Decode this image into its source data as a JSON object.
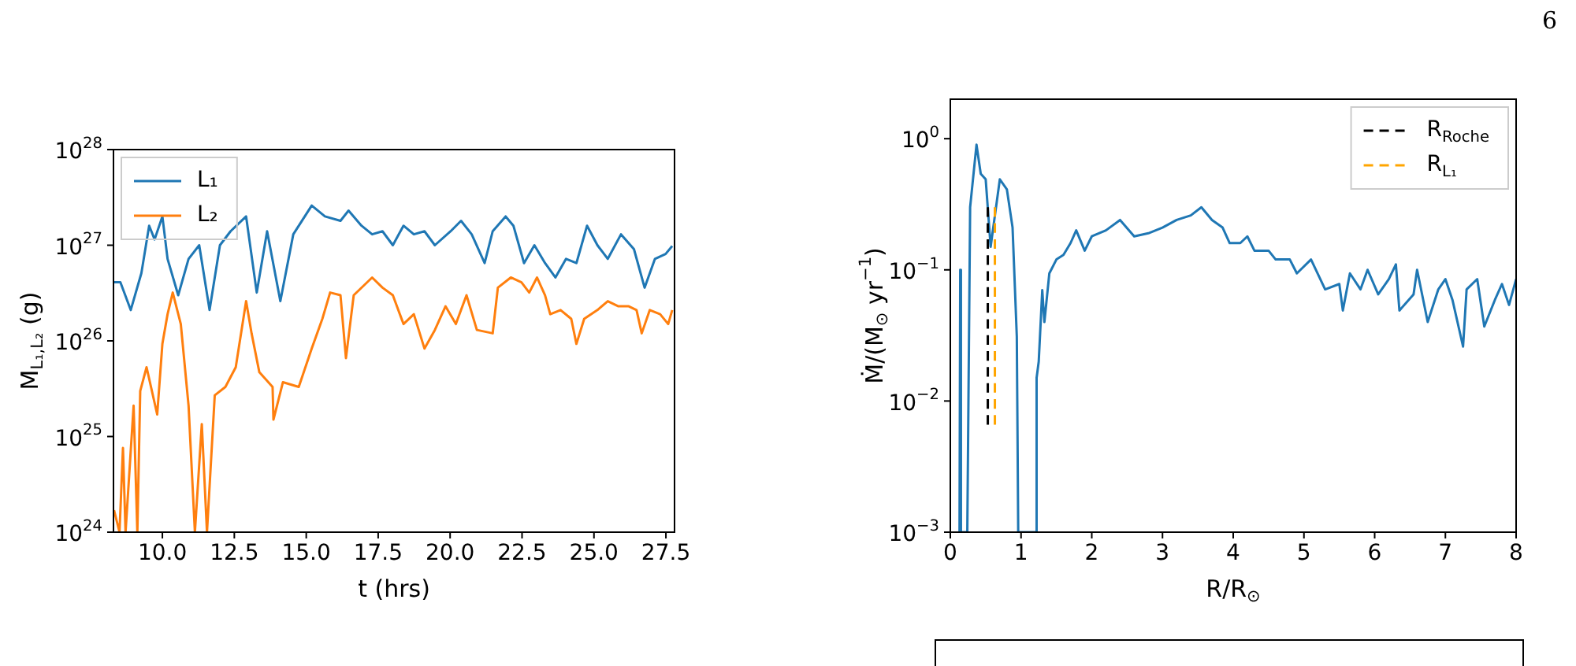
{
  "chart_data": [
    {
      "type": "line",
      "xlabel": "t (hrs)",
      "ylabel": "M$_{L₁,L₂}$ (g)",
      "log": "y",
      "legend": "top left",
      "xlim": [
        8.3,
        27.8
      ],
      "xticks": [
        {
          "value": 10,
          "label": "10.0"
        },
        {
          "value": 12.5,
          "label": "12.5"
        },
        {
          "value": 15,
          "label": "15.0"
        },
        {
          "value": 17.5,
          "label": "17.5"
        },
        {
          "value": 20,
          "label": "20.0"
        },
        {
          "value": 22.5,
          "label": "22.5"
        },
        {
          "value": 25,
          "label": "25.0"
        },
        {
          "value": 27.5,
          "label": "27.5"
        }
      ],
      "ylim": [
        1e+24,
        1e+28
      ],
      "yticks": [
        {
          "value": 1e+24,
          "label": "10$^{24}$"
        },
        {
          "value": 1e+25,
          "label": "10$^{25}$"
        },
        {
          "value": 1e+26,
          "label": "10$^{26}$"
        },
        {
          "value": 1e+27,
          "label": "10$^{27}$"
        },
        {
          "value": 1e+28,
          "label": "10$^{28}$"
        }
      ],
      "series": [
        {
          "name": "L₁",
          "color": "#1f77b4",
          "x": [
            8.3,
            8.54,
            8.9,
            9.27,
            9.54,
            9.73,
            10.0,
            10.18,
            10.55,
            10.91,
            11.28,
            11.64,
            12.0,
            12.37,
            12.91,
            13.28,
            13.64,
            14.1,
            14.55,
            15.19,
            15.65,
            16.19,
            16.47,
            16.92,
            17.29,
            17.65,
            18.01,
            18.38,
            18.74,
            19.11,
            19.47,
            20.02,
            20.38,
            20.75,
            21.2,
            21.48,
            21.93,
            22.2,
            22.57,
            22.93,
            23.3,
            23.66,
            24.03,
            24.39,
            24.76,
            25.12,
            25.48,
            25.94,
            26.39,
            26.76,
            27.12,
            27.49,
            27.72
          ],
          "values": [
            4.1e+26,
            4.1e+26,
            2.1e+26,
            5.1e+26,
            1.6e+27,
            1.15e+27,
            2e+27,
            7.2e+26,
            3e+26,
            7.2e+26,
            1e+27,
            2.1e+26,
            1e+27,
            1.4e+27,
            2e+27,
            3.2e+26,
            1.4e+27,
            2.6e+26,
            1.3e+27,
            2.6e+27,
            2e+27,
            1.8e+27,
            2.3e+27,
            1.6e+27,
            1.3e+27,
            1.4e+27,
            1e+27,
            1.6e+27,
            1.3e+27,
            1.4e+27,
            1e+27,
            1.4e+27,
            1.8e+27,
            1.3e+27,
            6.5e+26,
            1.4e+27,
            2e+27,
            1.6e+27,
            6.5e+26,
            1e+27,
            6.5e+26,
            4.6e+26,
            7.2e+26,
            6.5e+26,
            1.6e+27,
            1e+27,
            7.2e+26,
            1.3e+27,
            9.1e+26,
            3.6e+26,
            7.2e+26,
            8.1e+26,
            9.8e+26
          ]
        },
        {
          "name": "L₂",
          "color": "#ff7f0e",
          "x": [
            8.32,
            8.51,
            8.63,
            8.72,
            9.0,
            9.13,
            9.23,
            9.45,
            9.82,
            10.0,
            10.18,
            10.36,
            10.64,
            10.91,
            11.13,
            11.37,
            11.55,
            11.82,
            12.19,
            12.55,
            12.91,
            13.1,
            13.37,
            13.83,
            13.86,
            14.19,
            14.74,
            15.19,
            15.56,
            15.83,
            16.19,
            16.38,
            16.65,
            17.29,
            17.65,
            18.01,
            18.38,
            18.74,
            19.11,
            19.47,
            19.84,
            20.2,
            20.57,
            20.93,
            21.48,
            21.66,
            22.11,
            22.48,
            22.75,
            23.02,
            23.3,
            23.48,
            23.84,
            24.21,
            24.39,
            24.66,
            25.12,
            25.48,
            25.85,
            26.21,
            26.48,
            26.66,
            26.94,
            27.3,
            27.58,
            27.72
          ],
          "values": [
            1.7e+24,
            1e+24,
            7.6e+24,
            1e+24,
            2.1e+25,
            1e+24,
            3e+25,
            5.3e+25,
            1.7e+25,
            9.3e+25,
            1.9e+26,
            3.2e+26,
            1.5e+26,
            2.1e+25,
            1e+24,
            1.35e+25,
            1e+24,
            2.7e+25,
            3.3e+25,
            5.3e+25,
            2.6e+26,
            1.2e+26,
            4.7e+25,
            3.3e+25,
            1.5e+25,
            3.7e+25,
            3.3e+25,
            8.3e+25,
            1.7e+26,
            3.2e+26,
            3e+26,
            6.6e+25,
            3e+26,
            4.6e+26,
            3.6e+26,
            3e+26,
            1.5e+26,
            1.9e+26,
            8.3e+25,
            1.3e+26,
            2.3e+26,
            1.5e+26,
            3e+26,
            1.3e+26,
            1.2e+26,
            3.6e+26,
            4.6e+26,
            4.1e+26,
            3.2e+26,
            4.6e+26,
            3e+26,
            1.9e+26,
            2.1e+26,
            1.7e+26,
            9.3e+25,
            1.7e+26,
            2.1e+26,
            2.6e+26,
            2.3e+26,
            2.3e+26,
            2.1e+26,
            1.2e+26,
            2.1e+26,
            1.9e+26,
            1.5e+26,
            2.1e+26
          ]
        }
      ]
    },
    {
      "type": "line",
      "xlabel": "R/R$_{⊙}$",
      "ylabel": "Ṁ/(M$_{⊙}$ yr$^{−1}$)",
      "log": "y",
      "legend": "top right",
      "annotations": [
        "6"
      ],
      "xlim": [
        0,
        8
      ],
      "xticks": [
        0,
        1,
        2,
        3,
        4,
        5,
        6,
        7,
        8
      ],
      "ylim": [
        0.001,
        2
      ],
      "yticks": [
        {
          "value": 0.001,
          "label": "10$^{−3}$"
        },
        {
          "value": 0.01,
          "label": "10$^{−2}$"
        },
        {
          "value": 0.1,
          "label": "10$^{−1}$"
        },
        {
          "value": 1,
          "label": "10$^{0}$"
        }
      ],
      "series": [
        {
          "color": "#1f77b4",
          "x": [
            0.13,
            0.14,
            0.15,
            0.24,
            0.28,
            0.37,
            0.43,
            0.5,
            0.57,
            0.7,
            0.8,
            0.88,
            0.94,
            0.96,
            1.21,
            1.22,
            1.25,
            1.3,
            1.33,
            1.4,
            1.5,
            1.6,
            1.7,
            1.78,
            1.9,
            2.0,
            2.2,
            2.4,
            2.6,
            2.8,
            3.0,
            3.2,
            3.4,
            3.55,
            3.7,
            3.85,
            3.95,
            4.1,
            4.2,
            4.3,
            4.5,
            4.6,
            4.8,
            4.9,
            5.1,
            5.3,
            5.5,
            5.55,
            5.65,
            5.8,
            5.9,
            6.05,
            6.2,
            6.3,
            6.35,
            6.55,
            6.6,
            6.75,
            6.9,
            7.0,
            7.1,
            7.25,
            7.3,
            7.45,
            7.55,
            7.7,
            7.8,
            7.9,
            8.0
          ],
          "values": [
            0.001,
            0.1,
            0.001,
            0.001,
            0.3,
            0.9,
            0.54,
            0.49,
            0.15,
            0.49,
            0.41,
            0.21,
            0.031,
            0.001,
            0.001,
            0.015,
            0.02,
            0.07,
            0.04,
            0.094,
            0.12,
            0.13,
            0.16,
            0.2,
            0.14,
            0.18,
            0.2,
            0.24,
            0.18,
            0.19,
            0.21,
            0.24,
            0.26,
            0.3,
            0.24,
            0.21,
            0.16,
            0.16,
            0.18,
            0.14,
            0.14,
            0.12,
            0.12,
            0.094,
            0.12,
            0.071,
            0.078,
            0.049,
            0.094,
            0.071,
            0.1,
            0.065,
            0.085,
            0.11,
            0.049,
            0.065,
            0.1,
            0.04,
            0.071,
            0.085,
            0.059,
            0.026,
            0.071,
            0.085,
            0.037,
            0.059,
            0.078,
            0.054,
            0.085
          ]
        },
        {
          "name": "R$_{Roche}$",
          "color": "#000000",
          "line_style": "dashed",
          "x": [
            0.53,
            0.53
          ],
          "values": [
            0.0066,
            0.3
          ]
        },
        {
          "name": "R$_{L₁}$",
          "color": "#ffa500",
          "line_style": "dashed",
          "x": [
            0.63,
            0.63
          ],
          "values": [
            0.0066,
            0.3
          ]
        }
      ]
    }
  ]
}
